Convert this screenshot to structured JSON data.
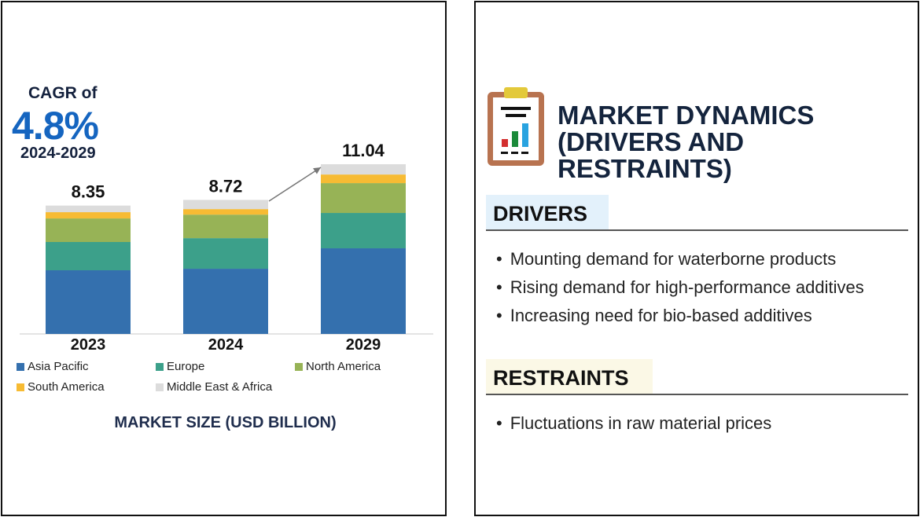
{
  "cagr": {
    "label": "CAGR of",
    "value": "4.8%",
    "period": "2024-2029"
  },
  "colors": {
    "Asia Pacific": "#3470ae",
    "Europe": "#3ca08a",
    "North America": "#97b356",
    "South America": "#f7bb33",
    "Middle East & Africa": "#dcdcdc"
  },
  "chart_data": {
    "type": "bar",
    "stacked": true,
    "categories": [
      "2023",
      "2024",
      "2029"
    ],
    "totals": [
      "8.35",
      "8.72",
      "11.04"
    ],
    "series": [
      {
        "name": "Asia Pacific",
        "values": [
          4.14,
          4.24,
          5.57
        ]
      },
      {
        "name": "Europe",
        "values": [
          1.84,
          1.99,
          2.3
        ]
      },
      {
        "name": "North America",
        "values": [
          1.53,
          1.53,
          1.94
        ]
      },
      {
        "name": "South America",
        "values": [
          0.41,
          0.36,
          0.56
        ]
      },
      {
        "name": "Middle East & Africa",
        "values": [
          0.43,
          0.6,
          0.67
        ]
      }
    ],
    "xlabel": "MARKET SIZE (USD BILLION)",
    "ylim": [
      0,
      11.04
    ],
    "legend": "bottom"
  },
  "right": {
    "title_line1": "MARKET DYNAMICS",
    "title_line2": "(DRIVERS AND RESTRAINTS)",
    "drivers_heading": "DRIVERS",
    "drivers": [
      "Mounting demand for waterborne products",
      "Rising demand for high-performance additives",
      "Increasing need for bio-based additives"
    ],
    "restraints_heading": "RESTRAINTS",
    "restraints": [
      "Fluctuations in raw material prices"
    ]
  }
}
